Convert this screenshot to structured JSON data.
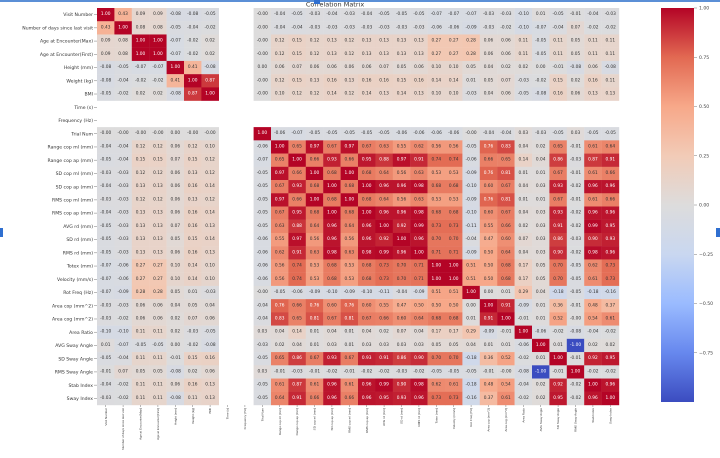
{
  "chart_data": {
    "type": "heatmap",
    "title": "Correlation Matrix",
    "colormap": "coolwarm",
    "vmin": -1.0,
    "vmax": 1.0,
    "colorbar_ticks": [
      "1.00",
      "0.75",
      "0.50",
      "0.25",
      "0.00",
      "−0.25",
      "−0.50",
      "−0.75"
    ],
    "colorbar_values": [
      1.0,
      0.75,
      0.5,
      0.25,
      0.0,
      -0.25,
      -0.5,
      -0.75
    ],
    "variables": [
      "Visit Number",
      "Number of days since last visit",
      "Age at Encounter(Max)",
      "Age at Encounter(First)",
      "Height (mm)",
      "Weight (kg)",
      "BMI",
      "Time (s)",
      "Frequency (Hz)",
      "Trial Num",
      "Range cop ml (mm)",
      "Range cop ap (mm)",
      "SD cop ml (mm)",
      "SD cop ap (mm)",
      "RMS cop ml (mm)",
      "RMS cop ap (mm)",
      "AVG rd (mm)",
      "SD rd (mm)",
      "RMS rd (mm)",
      "Totex (mm)",
      "Velocity (mm/s)",
      "Rot Freq (Hz)",
      "Area cop (mm^2)",
      "Area cog (mm^2)",
      "Area Ratio",
      "AVG Sway Angle",
      "SD Sway Angle",
      "RMS Sway Angle",
      "Stab Index",
      "Sway Index"
    ],
    "matrix_format": "lower_triangle_including_diagonal",
    "lower_triangle": [
      [
        1.0
      ],
      [
        0.43,
        1.0
      ],
      [
        0.09,
        0.08,
        1.0
      ],
      [
        0.09,
        0.08,
        1.0,
        1.0
      ],
      [
        -0.08,
        -0.05,
        -0.07,
        -0.07,
        1.0
      ],
      [
        -0.08,
        -0.04,
        -0.02,
        -0.02,
        0.41,
        1.0
      ],
      [
        -0.05,
        -0.02,
        0.02,
        0.02,
        -0.08,
        0.87,
        1.0
      ],
      [
        null,
        null,
        null,
        null,
        null,
        null,
        null,
        null
      ],
      [
        null,
        null,
        null,
        null,
        null,
        null,
        null,
        null,
        null
      ],
      [
        -0.0,
        -0.0,
        -0.0,
        -0.0,
        0.0,
        -0.0,
        -0.0,
        null,
        null,
        1.0
      ],
      [
        -0.04,
        -0.04,
        0.12,
        0.12,
        0.06,
        0.12,
        0.1,
        null,
        null,
        -0.06,
        1.0
      ],
      [
        -0.05,
        -0.04,
        0.15,
        0.15,
        0.07,
        0.15,
        0.12,
        null,
        null,
        -0.07,
        0.65,
        1.0
      ],
      [
        -0.03,
        -0.03,
        0.12,
        0.12,
        0.06,
        0.13,
        0.12,
        null,
        null,
        -0.05,
        0.97,
        0.66,
        1.0
      ],
      [
        -0.04,
        -0.03,
        0.13,
        0.13,
        0.06,
        0.16,
        0.14,
        null,
        null,
        -0.05,
        0.67,
        0.93,
        0.68,
        1.0
      ],
      [
        -0.03,
        -0.03,
        0.12,
        0.12,
        0.06,
        0.13,
        0.12,
        null,
        null,
        -0.05,
        0.97,
        0.66,
        1.0,
        0.68,
        1.0
      ],
      [
        -0.04,
        -0.03,
        0.13,
        0.13,
        0.06,
        0.16,
        0.14,
        null,
        null,
        -0.05,
        0.67,
        0.95,
        0.68,
        1.0,
        0.68,
        1.0
      ],
      [
        -0.05,
        -0.03,
        0.13,
        0.13,
        0.07,
        0.16,
        0.13,
        null,
        null,
        -0.05,
        0.63,
        0.88,
        0.64,
        0.96,
        0.64,
        0.96,
        1.0
      ],
      [
        -0.05,
        -0.03,
        0.13,
        0.13,
        0.05,
        0.15,
        0.14,
        null,
        null,
        -0.06,
        0.55,
        0.97,
        0.56,
        0.96,
        0.56,
        0.96,
        0.92,
        1.0
      ],
      [
        -0.05,
        -0.03,
        0.13,
        0.13,
        0.06,
        0.16,
        0.13,
        null,
        null,
        -0.06,
        0.62,
        0.91,
        0.63,
        0.98,
        0.63,
        0.98,
        0.99,
        0.96,
        1.0
      ],
      [
        -0.07,
        -0.06,
        0.27,
        0.27,
        0.1,
        0.14,
        0.1,
        null,
        null,
        -0.06,
        0.56,
        0.74,
        0.53,
        0.68,
        0.53,
        0.68,
        0.73,
        0.7,
        0.71,
        1.0
      ],
      [
        -0.07,
        -0.06,
        0.27,
        0.27,
        0.1,
        0.14,
        0.1,
        null,
        null,
        -0.06,
        0.56,
        0.74,
        0.53,
        0.68,
        0.53,
        0.68,
        0.73,
        0.7,
        0.71,
        1.0,
        1.0
      ],
      [
        -0.07,
        -0.09,
        0.28,
        0.28,
        0.05,
        0.01,
        -0.03,
        null,
        null,
        -0.0,
        -0.05,
        -0.06,
        -0.09,
        -0.1,
        -0.09,
        -0.1,
        -0.11,
        -0.04,
        -0.09,
        0.51,
        0.51,
        1.0
      ],
      [
        -0.03,
        -0.03,
        0.06,
        0.06,
        0.04,
        0.05,
        0.04,
        null,
        null,
        -0.04,
        0.76,
        0.66,
        0.76,
        0.6,
        0.76,
        0.6,
        0.55,
        0.47,
        0.5,
        0.5,
        0.5,
        0.0,
        1.0
      ],
      [
        -0.03,
        -0.02,
        0.06,
        0.06,
        0.02,
        0.07,
        0.06,
        null,
        null,
        -0.04,
        0.83,
        0.65,
        0.81,
        0.67,
        0.81,
        0.67,
        0.66,
        0.6,
        0.64,
        0.68,
        0.68,
        0.01,
        0.91,
        1.0
      ],
      [
        -0.1,
        -0.1,
        0.11,
        0.11,
        0.02,
        -0.03,
        -0.05,
        null,
        null,
        0.03,
        0.04,
        0.14,
        0.01,
        0.04,
        0.01,
        0.04,
        0.02,
        0.07,
        0.04,
        0.17,
        0.17,
        0.29,
        -0.09,
        -0.01,
        1.0
      ],
      [
        0.01,
        -0.07,
        -0.05,
        -0.05,
        0.0,
        -0.02,
        -0.08,
        null,
        null,
        -0.03,
        0.02,
        0.04,
        0.01,
        0.03,
        0.01,
        0.03,
        0.03,
        0.03,
        0.03,
        0.05,
        0.05,
        0.04,
        0.01,
        0.01,
        -0.06,
        1.0
      ],
      [
        -0.05,
        -0.04,
        0.11,
        0.11,
        -0.01,
        0.15,
        0.16,
        null,
        null,
        -0.05,
        0.65,
        0.86,
        0.67,
        0.93,
        0.67,
        0.93,
        0.91,
        0.86,
        0.9,
        0.7,
        0.7,
        -0.18,
        0.36,
        0.52,
        -0.02,
        0.01,
        1.0
      ],
      [
        -0.01,
        0.07,
        0.05,
        0.05,
        -0.08,
        0.02,
        0.06,
        null,
        null,
        0.03,
        -0.01,
        -0.03,
        -0.01,
        -0.02,
        -0.01,
        -0.02,
        -0.02,
        -0.03,
        -0.02,
        -0.05,
        -0.05,
        -0.05,
        -0.01,
        -0.0,
        -0.08,
        -1.0,
        -0.01,
        1.0
      ],
      [
        -0.04,
        -0.02,
        0.11,
        0.11,
        0.06,
        0.16,
        0.13,
        null,
        null,
        -0.05,
        0.61,
        0.87,
        0.61,
        0.96,
        0.61,
        0.96,
        0.99,
        0.9,
        0.98,
        0.62,
        0.61,
        -0.18,
        0.48,
        0.54,
        -0.04,
        0.02,
        0.92,
        -0.02,
        1.0
      ],
      [
        -0.03,
        -0.02,
        0.11,
        0.11,
        -0.08,
        0.11,
        0.13,
        null,
        null,
        -0.05,
        0.64,
        0.91,
        0.66,
        0.96,
        0.66,
        0.96,
        0.95,
        0.93,
        0.96,
        0.73,
        0.73,
        -0.16,
        0.37,
        0.61,
        -0.02,
        0.02,
        0.95,
        -0.02,
        0.96,
        1.0
      ]
    ]
  },
  "colors": {
    "accent": "#2f6fd0",
    "cmap_stops": [
      "#3b4cc0",
      "#6788ee",
      "#9abbff",
      "#c9d7f0",
      "#dddcdc",
      "#f2cbb7",
      "#f7a889",
      "#e26952",
      "#b40426"
    ]
  }
}
